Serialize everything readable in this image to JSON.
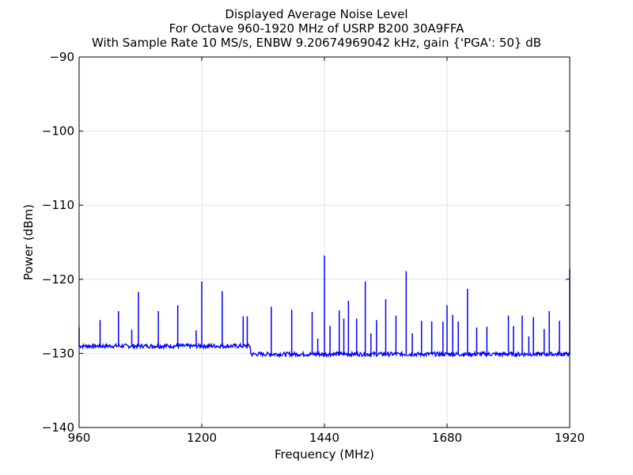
{
  "chart_data": {
    "type": "line",
    "title_lines": [
      "Displayed Average Noise Level",
      "For Octave 960-1920 MHz of USRP B200 30A9FFA",
      "With Sample Rate 10 MS/s, ENBW 9.20674969042 kHz, gain {'PGA': 50} dB"
    ],
    "xlabel": "Frequency (MHz)",
    "ylabel": "Power (dBm)",
    "xlim": [
      960,
      1920
    ],
    "ylim": [
      -140,
      -90
    ],
    "xticks": [
      960,
      1200,
      1440,
      1680,
      1920
    ],
    "xtick_labels": [
      "960",
      "1200",
      "1440",
      "1680",
      "1920"
    ],
    "yticks": [
      -140,
      -130,
      -120,
      -110,
      -100,
      -90
    ],
    "ytick_labels": [
      "−140",
      "−130",
      "−120",
      "−110",
      "−100",
      "−90"
    ],
    "grid": true,
    "series": [
      {
        "color": "#0000ff",
        "baseline_segments": [
          {
            "x_start": 960,
            "x_end": 1296,
            "level": -129.0
          },
          {
            "x_start": 1296,
            "x_end": 1920,
            "level": -130.1
          }
        ],
        "spikes": [
          {
            "x": 960,
            "y": -126.5
          },
          {
            "x": 1001,
            "y": -125.5
          },
          {
            "x": 1037,
            "y": -124.3
          },
          {
            "x": 1063,
            "y": -126.8
          },
          {
            "x": 1076,
            "y": -121.7
          },
          {
            "x": 1115,
            "y": -124.3
          },
          {
            "x": 1153,
            "y": -123.5
          },
          {
            "x": 1189,
            "y": -126.9
          },
          {
            "x": 1200,
            "y": -120.3
          },
          {
            "x": 1240,
            "y": -121.6
          },
          {
            "x": 1281,
            "y": -125.0
          },
          {
            "x": 1289,
            "y": -125.0
          },
          {
            "x": 1336,
            "y": -123.7
          },
          {
            "x": 1376,
            "y": -124.1
          },
          {
            "x": 1416,
            "y": -124.4
          },
          {
            "x": 1427,
            "y": -128.0
          },
          {
            "x": 1440,
            "y": -116.8
          },
          {
            "x": 1451,
            "y": -126.3
          },
          {
            "x": 1469,
            "y": -124.2
          },
          {
            "x": 1478,
            "y": -125.3
          },
          {
            "x": 1487,
            "y": -122.9
          },
          {
            "x": 1503,
            "y": -125.3
          },
          {
            "x": 1520,
            "y": -120.3
          },
          {
            "x": 1531,
            "y": -127.3
          },
          {
            "x": 1542,
            "y": -125.5
          },
          {
            "x": 1560,
            "y": -122.7
          },
          {
            "x": 1580,
            "y": -124.9
          },
          {
            "x": 1600,
            "y": -118.9
          },
          {
            "x": 1612,
            "y": -127.3
          },
          {
            "x": 1630,
            "y": -125.6
          },
          {
            "x": 1650,
            "y": -125.7
          },
          {
            "x": 1672,
            "y": -125.7
          },
          {
            "x": 1680,
            "y": -123.5
          },
          {
            "x": 1691,
            "y": -124.8
          },
          {
            "x": 1702,
            "y": -125.7
          },
          {
            "x": 1720,
            "y": -121.3
          },
          {
            "x": 1738,
            "y": -126.5
          },
          {
            "x": 1758,
            "y": -126.4
          },
          {
            "x": 1800,
            "y": -124.9
          },
          {
            "x": 1810,
            "y": -126.3
          },
          {
            "x": 1827,
            "y": -124.9
          },
          {
            "x": 1840,
            "y": -127.7
          },
          {
            "x": 1849,
            "y": -125.1
          },
          {
            "x": 1870,
            "y": -126.7
          },
          {
            "x": 1880,
            "y": -124.3
          },
          {
            "x": 1900,
            "y": -125.6
          },
          {
            "x": 1920,
            "y": -118.6
          }
        ]
      }
    ]
  }
}
